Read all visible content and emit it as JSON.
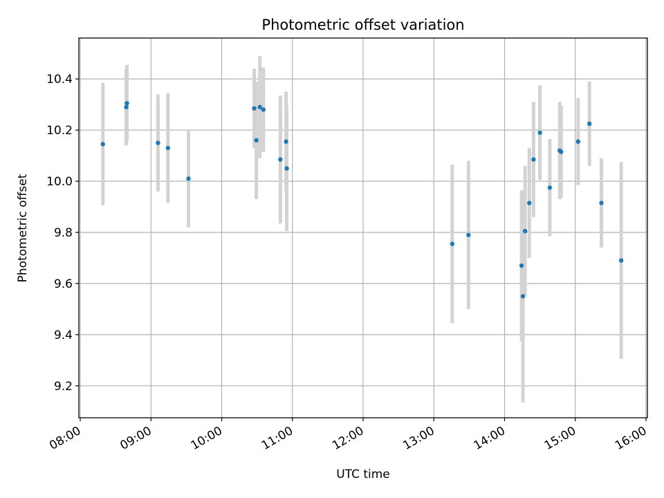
{
  "chart_data": {
    "type": "scatter",
    "title": "Photometric offset variation",
    "xlabel": "UTC time",
    "ylabel": "Photometric offset",
    "xlim": [
      7.98,
      16.02
    ],
    "ylim": [
      9.075,
      10.56
    ],
    "grid": true,
    "x_ticks": [
      8,
      9,
      10,
      11,
      12,
      13,
      14,
      15,
      16
    ],
    "x_tick_labels": [
      "08:00",
      "09:00",
      "10:00",
      "11:00",
      "12:00",
      "13:00",
      "14:00",
      "15:00",
      "16:00"
    ],
    "y_ticks": [
      9.2,
      9.4,
      9.6,
      9.8,
      10.0,
      10.2,
      10.4
    ],
    "y_tick_labels": [
      "9.2",
      "9.4",
      "9.6",
      "9.8",
      "10.0",
      "10.2",
      "10.4"
    ],
    "point_color": "#1f77b4",
    "errorbar_color": "#d3d3d3",
    "series": [
      {
        "name": "offset",
        "points": [
          {
            "x": 8.32,
            "y": 10.145,
            "err": 0.24
          },
          {
            "x": 8.65,
            "y": 10.29,
            "err": 0.15
          },
          {
            "x": 8.66,
            "y": 10.305,
            "err": 0.15
          },
          {
            "x": 9.1,
            "y": 10.15,
            "err": 0.19
          },
          {
            "x": 9.24,
            "y": 10.13,
            "err": 0.215
          },
          {
            "x": 9.53,
            "y": 10.01,
            "err": 0.19
          },
          {
            "x": 10.46,
            "y": 10.285,
            "err": 0.155
          },
          {
            "x": 10.49,
            "y": 10.16,
            "err": 0.23
          },
          {
            "x": 10.54,
            "y": 10.29,
            "err": 0.2
          },
          {
            "x": 10.59,
            "y": 10.28,
            "err": 0.165
          },
          {
            "x": 10.83,
            "y": 10.085,
            "err": 0.25
          },
          {
            "x": 10.91,
            "y": 10.155,
            "err": 0.195
          },
          {
            "x": 10.92,
            "y": 10.05,
            "err": 0.245
          },
          {
            "x": 13.26,
            "y": 9.755,
            "err": 0.31
          },
          {
            "x": 13.49,
            "y": 9.79,
            "err": 0.29
          },
          {
            "x": 14.24,
            "y": 9.67,
            "err": 0.295
          },
          {
            "x": 14.26,
            "y": 9.55,
            "err": 0.415
          },
          {
            "x": 14.29,
            "y": 9.805,
            "err": 0.255
          },
          {
            "x": 14.35,
            "y": 9.915,
            "err": 0.215
          },
          {
            "x": 14.41,
            "y": 10.085,
            "err": 0.225
          },
          {
            "x": 14.5,
            "y": 10.19,
            "err": 0.185
          },
          {
            "x": 14.64,
            "y": 9.975,
            "err": 0.19
          },
          {
            "x": 14.78,
            "y": 10.12,
            "err": 0.19
          },
          {
            "x": 14.8,
            "y": 10.115,
            "err": 0.18
          },
          {
            "x": 15.04,
            "y": 10.155,
            "err": 0.17
          },
          {
            "x": 15.2,
            "y": 10.225,
            "err": 0.165
          },
          {
            "x": 15.37,
            "y": 9.915,
            "err": 0.175
          },
          {
            "x": 15.65,
            "y": 9.69,
            "err": 0.385
          }
        ]
      }
    ]
  }
}
